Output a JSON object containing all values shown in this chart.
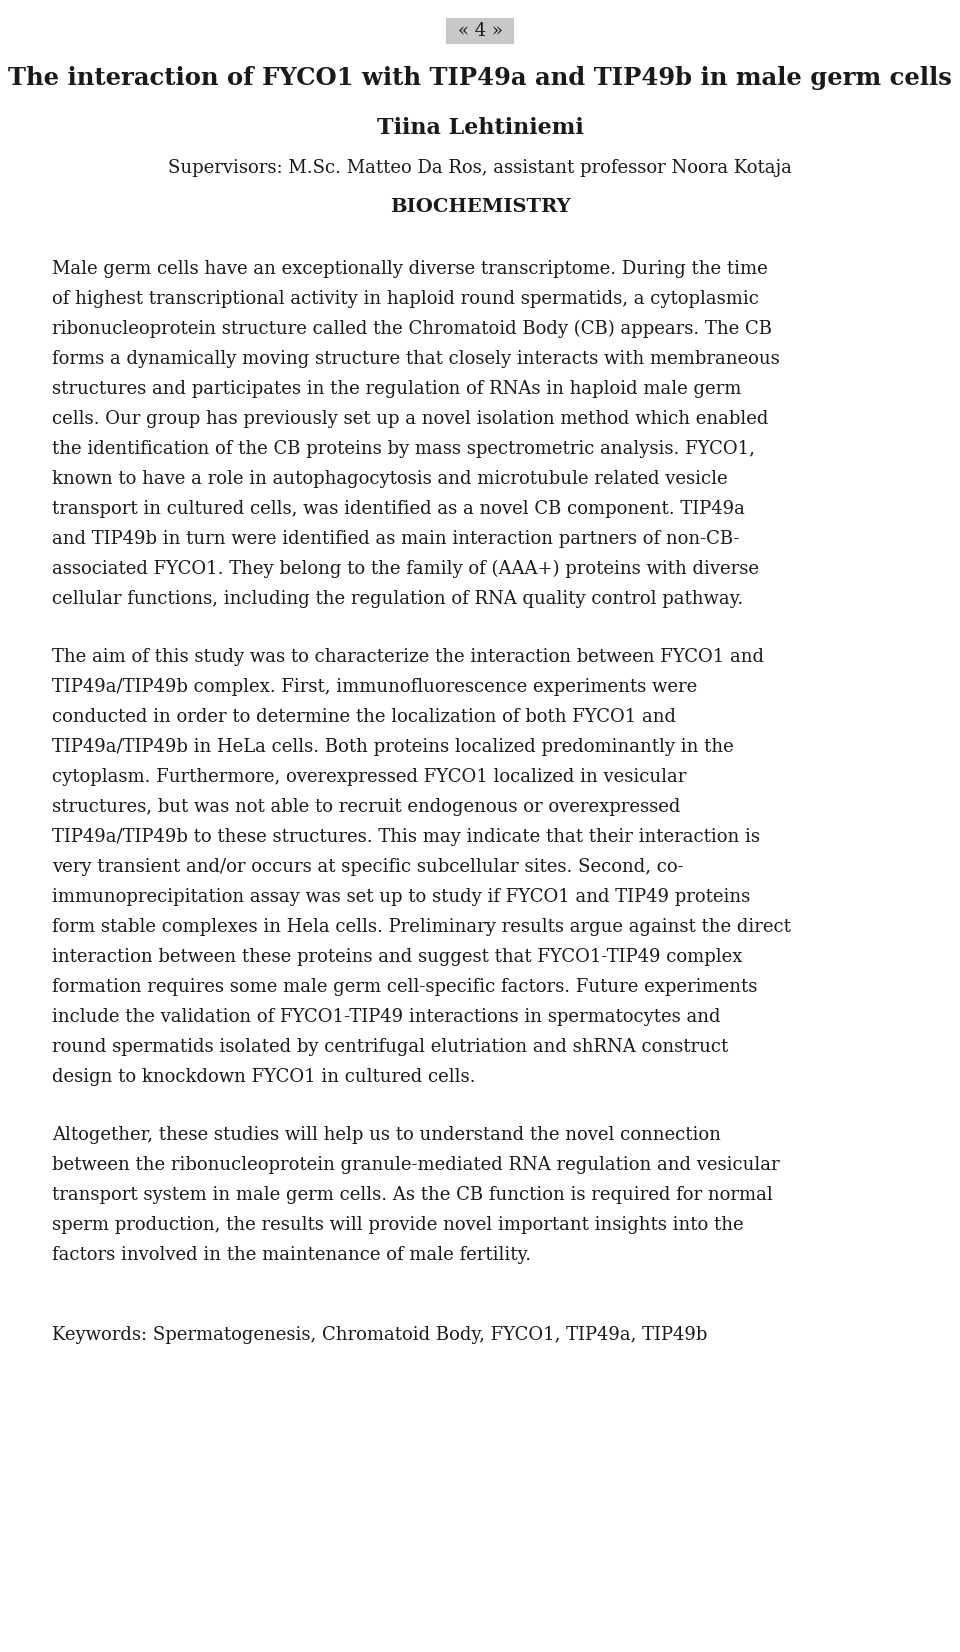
{
  "page_number": "« 4 »",
  "title": "The interaction of FYCO1 with TIP49a and TIP49b in male germ cells",
  "author": "Tiina Lehtiniemi",
  "supervisors": "Supervisors: M.Sc. Matteo Da Ros, assistant professor Noora Kotaja",
  "department": "BIOCHEMISTRY",
  "paragraph1": "Male germ cells have an exceptionally diverse transcriptome. During the time of highest transcriptional activity in haploid round spermatids, a cytoplasmic ribonucleoprotein structure called the Chromatoid Body (CB) appears. The CB forms a dynamically moving structure that closely interacts with membraneous structures and participates in the regulation of RNAs in haploid male germ cells. Our group has previously set up a novel isolation method which enabled the identification of the CB proteins by mass spectrometric analysis. FYCO1, known to have a role in autophagocytosis and microtubule related vesicle transport in cultured cells, was identified as a novel CB component. TIP49a and TIP49b in turn were identified as main interaction partners of non-CB-associated FYCO1. They belong to the family of (AAA+) proteins with diverse cellular functions, including the regulation of RNA quality control pathway.",
  "paragraph2": "The aim of this study was to characterize the interaction between FYCO1 and TIP49a/TIP49b complex. First, immunofluorescence experiments were conducted in order to determine the localization of both FYCO1 and TIP49a/TIP49b in HeLa cells. Both proteins localized predominantly in the cytoplasm. Furthermore, overexpressed FYCO1 localized in vesicular structures, but was not able to recruit endogenous or overexpressed TIP49a/TIP49b to these structures. This may indicate that their interaction is very transient and/or occurs at specific subcellular sites. Second, co-immunoprecipitation assay was set up to study if FYCO1 and TIP49 proteins form stable complexes in Hela cells. Preliminary results argue against the direct interaction between these proteins and suggest that FYCO1-TIP49 complex formation requires some male germ cell-specific factors. Future experiments include the validation of FYCO1-TIP49 interactions in spermatocytes and round spermatids isolated by centrifugal elutriation and shRNA construct design to knockdown FYCO1 in cultured cells.",
  "paragraph3": "Altogether, these studies will help us to understand the novel connection between the ribonucleoprotein granule-mediated RNA regulation and vesicular transport system in male germ cells. As the CB function is required for normal sperm production, the results will provide novel important insights into the factors involved in the maintenance of male fertility.",
  "keywords": "Keywords: Spermatogenesis, Chromatoid Body, FYCO1, TIP49a, TIP49b",
  "bg_color": "#ffffff",
  "text_color": "#1a1a1a",
  "page_num_bg": "#c8c8c8",
  "body_lines_p1": [
    "Male germ cells have an exceptionally diverse transcriptome. During the time",
    "of highest transcriptional activity in haploid round spermatids, a cytoplasmic",
    "ribonucleoprotein structure called the Chromatoid Body (CB) appears. The CB",
    "forms a dynamically moving structure that closely interacts with membraneous",
    "structures and participates in the regulation of RNAs in haploid male germ",
    "cells. Our group has previously set up a novel isolation method which enabled",
    "the identification of the CB proteins by mass spectrometric analysis. FYCO1,",
    "known to have a role in autophagocytosis and microtubule related vesicle",
    "transport in cultured cells, was identified as a novel CB component. TIP49a",
    "and TIP49b in turn were identified as main interaction partners of non-CB-",
    "associated FYCO1. They belong to the family of (AAA+) proteins with diverse",
    "cellular functions, including the regulation of RNA quality control pathway."
  ],
  "body_lines_p2": [
    "The aim of this study was to characterize the interaction between FYCO1 and",
    "TIP49a/TIP49b complex. First, immunofluorescence experiments were",
    "conducted in order to determine the localization of both FYCO1 and",
    "TIP49a/TIP49b in HeLa cells. Both proteins localized predominantly in the",
    "cytoplasm. Furthermore, overexpressed FYCO1 localized in vesicular",
    "structures, but was not able to recruit endogenous or overexpressed",
    "TIP49a/TIP49b to these structures. This may indicate that their interaction is",
    "very transient and/or occurs at specific subcellular sites. Second, co-",
    "immunoprecipitation assay was set up to study if FYCO1 and TIP49 proteins",
    "form stable complexes in Hela cells. Preliminary results argue against the direct",
    "interaction between these proteins and suggest that FYCO1-TIP49 complex",
    "formation requires some male germ cell-specific factors. Future experiments",
    "include the validation of FYCO1-TIP49 interactions in spermatocytes and",
    "round spermatids isolated by centrifugal elutriation and shRNA construct",
    "design to knockdown FYCO1 in cultured cells."
  ],
  "body_lines_p3": [
    "Altogether, these studies will help us to understand the novel connection",
    "between the ribonucleoprotein granule-mediated RNA regulation and vesicular",
    "transport system in male germ cells. As the CB function is required for normal",
    "sperm production, the results will provide novel important insights into the",
    "factors involved in the maintenance of male fertility."
  ]
}
